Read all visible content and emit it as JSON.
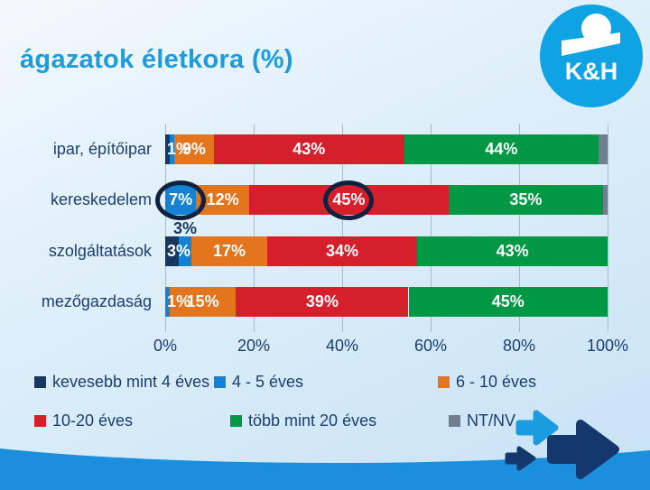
{
  "title": "ágazatok életkora (%)",
  "logo": {
    "text": "K&H"
  },
  "colors": {
    "title": "#1E9BDD",
    "text": "#1B3E6F",
    "wave": "#1B8EDC",
    "logo_circle": "#0FA3E4",
    "annotation": "#0E2240",
    "arrow_dark": "#14386B",
    "arrow_light": "#1B9BE0",
    "gridline": "#A9BACB"
  },
  "chart_data": {
    "type": "bar",
    "stacked": true,
    "orientation": "horizontal",
    "title": "ágazatok életkora (%)",
    "xlim": [
      0,
      100
    ],
    "x_ticks": [
      "0%",
      "20%",
      "40%",
      "60%",
      "80%",
      "100%"
    ],
    "grid": true,
    "legend_position": "bottom",
    "categories": [
      "ipar, építőipar",
      "kereskedelem",
      "szolgáltatások",
      "mezőgazdaság"
    ],
    "series": [
      {
        "name": "kevesebb mint 4 éves",
        "color": "#17375E",
        "values": [
          1,
          0,
          3,
          0
        ],
        "labels": [
          "1%",
          "",
          "3%",
          ""
        ]
      },
      {
        "name": "4 - 5 éves",
        "color": "#1581D2",
        "values": [
          1,
          7,
          3,
          1
        ],
        "labels": [
          "",
          "7%",
          "",
          "1%"
        ]
      },
      {
        "name": "6 - 10 éves",
        "color": "#E2751D",
        "values": [
          9,
          12,
          17,
          15
        ],
        "labels": [
          "9%",
          "12%",
          "17%",
          "15%"
        ]
      },
      {
        "name": "10-20 éves",
        "color": "#D51F2B",
        "values": [
          43,
          45,
          34,
          39
        ],
        "labels": [
          "43%",
          "45%",
          "34%",
          "39%"
        ]
      },
      {
        "name": "több mint 20 éves",
        "color": "#009845",
        "values": [
          44,
          35,
          43,
          45
        ],
        "labels": [
          "44%",
          "35%",
          "43%",
          "45%"
        ]
      },
      {
        "name": "NT/NV",
        "color": "#6F7E90",
        "values": [
          2,
          1,
          0,
          0
        ],
        "labels": [
          "",
          "",
          "",
          ""
        ]
      }
    ],
    "annotations": {
      "circles": [
        {
          "category_index": 1,
          "series_index": 1,
          "label": "7%"
        },
        {
          "category_index": 1,
          "series_index": 3,
          "label": "45%"
        }
      ],
      "callout": {
        "category_index": 2,
        "series_index": 1,
        "text": "3%"
      }
    }
  },
  "legend": {
    "items": [
      {
        "label": "kevesebb mint 4 éves",
        "color": "#17375E"
      },
      {
        "label": "4 - 5 éves",
        "color": "#1581D2"
      },
      {
        "label": "6 - 10 éves",
        "color": "#E2751D"
      },
      {
        "label": "10-20 éves",
        "color": "#D51F2B"
      },
      {
        "label": "több mint 20 éves",
        "color": "#009845"
      },
      {
        "label": "NT/NV",
        "color": "#6F7E90"
      }
    ]
  }
}
